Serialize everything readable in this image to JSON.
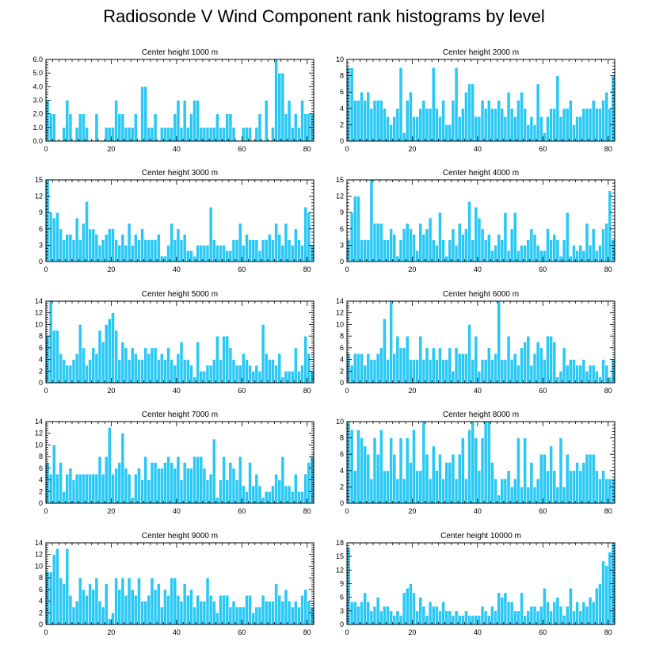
{
  "title": "Radiosonde V Wind Component rank histograms by level",
  "bar_color": "#29c8f5",
  "edge_color": "#ffffff",
  "chart_data": [
    {
      "type": "bar",
      "title": "Center height 1000 m",
      "xlim": [
        0,
        82
      ],
      "ylim": [
        0,
        6
      ],
      "xticks": [
        0,
        20,
        40,
        60,
        80
      ],
      "yticks": [
        0,
        1,
        2,
        3,
        4,
        5,
        6
      ],
      "ytick_labels": [
        "0.0",
        "1.0",
        "2.0",
        "3.0",
        "4.0",
        "5.0",
        "6.0"
      ],
      "values": [
        3,
        2,
        2,
        0,
        0,
        1,
        3,
        2,
        0,
        1,
        2,
        2,
        1,
        0,
        0,
        2,
        0,
        0,
        1,
        1,
        1,
        3,
        2,
        2,
        1,
        1,
        1,
        2,
        0,
        4,
        4,
        1,
        1,
        2,
        0,
        1,
        1,
        1,
        1,
        2,
        3,
        1,
        3,
        1,
        2,
        3,
        3,
        1,
        1,
        1,
        1,
        1,
        2,
        1,
        1,
        2,
        2,
        1,
        0,
        0,
        1,
        1,
        1,
        0,
        1,
        2,
        0,
        3,
        0,
        1,
        6,
        5,
        5,
        2,
        3,
        1,
        2,
        1,
        3,
        2,
        2,
        2
      ]
    },
    {
      "type": "bar",
      "title": "Center height 2000 m",
      "xlim": [
        0,
        82
      ],
      "ylim": [
        0,
        10
      ],
      "xticks": [
        0,
        20,
        40,
        60,
        80
      ],
      "yticks": [
        0,
        2,
        4,
        6,
        8,
        10
      ],
      "ytick_labels": [
        "0",
        "2",
        "4",
        "6",
        "8",
        "10"
      ],
      "values": [
        9,
        9,
        5,
        5,
        6,
        5,
        6,
        4,
        5,
        5,
        5,
        4,
        3,
        2,
        3,
        4,
        9,
        1,
        5,
        6,
        3,
        3,
        4,
        5,
        4,
        4,
        9,
        4,
        3,
        5,
        2,
        2,
        5,
        9,
        3,
        4,
        6,
        7,
        7,
        3,
        3,
        5,
        4,
        5,
        4,
        4,
        5,
        4,
        3,
        6,
        4,
        3,
        5,
        6,
        4,
        2,
        3,
        2,
        7,
        3,
        1,
        3,
        4,
        4,
        8,
        3,
        4,
        4,
        5,
        2,
        3,
        3,
        4,
        4,
        4,
        5,
        4,
        4,
        5,
        6,
        4,
        8
      ]
    },
    {
      "type": "bar",
      "title": "Center height 3000 m",
      "xlim": [
        0,
        82
      ],
      "ylim": [
        0,
        15
      ],
      "xticks": [
        0,
        20,
        40,
        60,
        80
      ],
      "yticks": [
        0,
        3,
        6,
        9,
        12,
        15
      ],
      "ytick_labels": [
        "0",
        "3",
        "6",
        "9",
        "12",
        "15"
      ],
      "values": [
        15,
        9,
        8,
        9,
        6,
        4,
        5,
        5,
        4,
        8,
        4,
        7,
        11,
        6,
        6,
        5,
        3,
        4,
        5,
        6,
        6,
        4,
        3,
        5,
        3,
        7,
        3,
        5,
        4,
        6,
        4,
        4,
        4,
        4,
        5,
        1,
        1,
        3,
        7,
        4,
        6,
        4,
        5,
        2,
        2,
        1,
        3,
        3,
        3,
        3,
        10,
        4,
        3,
        3,
        3,
        2,
        2,
        4,
        4,
        7,
        3,
        5,
        4,
        4,
        4,
        2,
        4,
        4,
        5,
        4,
        7,
        5,
        3,
        7,
        4,
        3,
        6,
        4,
        3,
        10,
        9,
        3
      ]
    },
    {
      "type": "bar",
      "title": "Center height 4000 m",
      "xlim": [
        0,
        82
      ],
      "ylim": [
        0,
        15
      ],
      "xticks": [
        0,
        20,
        40,
        60,
        80
      ],
      "yticks": [
        0,
        3,
        6,
        9,
        12,
        15
      ],
      "ytick_labels": [
        "0",
        "3",
        "6",
        "9",
        "12",
        "15"
      ],
      "values": [
        4,
        9,
        12,
        12,
        4,
        4,
        4,
        15,
        7,
        7,
        7,
        4,
        4,
        6,
        5,
        1,
        4,
        6,
        7,
        6,
        5,
        2,
        7,
        5,
        6,
        8,
        4,
        3,
        9,
        4,
        1,
        4,
        6,
        3,
        7,
        5,
        6,
        11,
        4,
        10,
        8,
        6,
        4,
        5,
        2,
        3,
        5,
        4,
        9,
        2,
        6,
        9,
        2,
        3,
        3,
        4,
        6,
        5,
        3,
        2,
        2,
        6,
        4,
        5,
        4,
        1,
        4,
        9,
        1,
        3,
        2,
        3,
        2,
        7,
        3,
        6,
        2,
        3,
        6,
        7,
        13,
        4
      ]
    },
    {
      "type": "bar",
      "title": "Center height 5000 m",
      "xlim": [
        0,
        82
      ],
      "ylim": [
        0,
        14
      ],
      "xticks": [
        0,
        20,
        40,
        60,
        80
      ],
      "yticks": [
        0,
        2,
        4,
        6,
        8,
        10,
        12,
        14
      ],
      "ytick_labels": [
        "0",
        "2",
        "4",
        "6",
        "8",
        "10",
        "12",
        "14"
      ],
      "values": [
        8,
        14,
        9,
        9,
        5,
        4,
        3,
        3,
        4,
        5,
        10,
        6,
        3,
        4,
        6,
        5,
        9,
        7,
        10,
        11,
        12,
        9,
        4,
        7,
        6,
        4,
        6,
        5,
        4,
        4,
        6,
        5,
        6,
        6,
        4,
        5,
        4,
        6,
        4,
        3,
        5,
        7,
        4,
        4,
        3,
        1,
        7,
        2,
        2,
        3,
        3,
        4,
        8,
        4,
        8,
        8,
        6,
        4,
        3,
        3,
        5,
        4,
        3,
        2,
        3,
        2,
        10,
        5,
        4,
        4,
        3,
        5,
        1,
        2,
        2,
        2,
        6,
        2,
        3,
        8,
        5,
        2
      ]
    },
    {
      "type": "bar",
      "title": "Center height 6000 m",
      "xlim": [
        0,
        82
      ],
      "ylim": [
        0,
        14
      ],
      "xticks": [
        0,
        20,
        40,
        60,
        80
      ],
      "yticks": [
        0,
        2,
        4,
        6,
        8,
        10,
        12,
        14
      ],
      "ytick_labels": [
        "0",
        "2",
        "4",
        "6",
        "8",
        "10",
        "12",
        "14"
      ],
      "values": [
        5,
        3,
        5,
        5,
        5,
        3,
        5,
        4,
        4,
        5,
        6,
        11,
        4,
        14,
        5,
        8,
        6,
        6,
        8,
        4,
        4,
        4,
        8,
        4,
        6,
        4,
        6,
        4,
        6,
        4,
        4,
        6,
        2,
        6,
        5,
        5,
        5,
        10,
        4,
        8,
        2,
        4,
        4,
        6,
        4,
        5,
        14,
        4,
        4,
        8,
        4,
        5,
        3,
        6,
        7,
        8,
        3,
        5,
        7,
        6,
        4,
        8,
        8,
        7,
        1,
        2,
        6,
        3,
        4,
        4,
        3,
        3,
        4,
        2,
        3,
        3,
        2,
        1,
        4,
        3,
        1,
        4
      ]
    },
    {
      "type": "bar",
      "title": "Center height 7000 m",
      "xlim": [
        0,
        82
      ],
      "ylim": [
        0,
        14
      ],
      "xticks": [
        0,
        20,
        40,
        60,
        80
      ],
      "yticks": [
        0,
        2,
        4,
        6,
        8,
        10,
        12,
        14
      ],
      "ytick_labels": [
        "0",
        "2",
        "4",
        "6",
        "8",
        "10",
        "12",
        "14"
      ],
      "values": [
        7,
        5,
        10,
        5,
        7,
        2,
        5,
        6,
        4,
        5,
        5,
        5,
        5,
        5,
        5,
        5,
        8,
        5,
        8,
        13,
        5,
        6,
        7,
        12,
        6,
        5,
        1,
        5,
        6,
        4,
        8,
        4,
        7,
        7,
        6,
        6,
        7,
        8,
        7,
        6,
        8,
        4,
        7,
        6,
        6,
        8,
        8,
        8,
        6,
        4,
        5,
        11,
        1,
        4,
        8,
        4,
        7,
        6,
        4,
        8,
        3,
        2,
        7,
        3,
        5,
        3,
        1,
        2,
        2,
        3,
        5,
        4,
        8,
        3,
        3,
        2,
        5,
        2,
        2,
        5,
        7,
        8
      ]
    },
    {
      "type": "bar",
      "title": "Center height 8000 m",
      "xlim": [
        0,
        82
      ],
      "ylim": [
        0,
        10
      ],
      "xticks": [
        0,
        20,
        40,
        60,
        80
      ],
      "yticks": [
        0,
        2,
        4,
        6,
        8,
        10
      ],
      "ytick_labels": [
        "0",
        "2",
        "4",
        "6",
        "8",
        "10"
      ],
      "values": [
        10,
        9,
        4,
        9,
        8,
        7,
        6,
        3,
        8,
        6,
        9,
        4,
        4,
        8,
        6,
        3,
        8,
        3,
        8,
        5,
        9,
        4,
        4,
        10,
        6,
        3,
        7,
        4,
        6,
        3,
        5,
        5,
        6,
        3,
        6,
        8,
        3,
        9,
        10,
        8,
        4,
        8,
        10,
        10,
        5,
        3,
        1,
        3,
        3,
        4,
        2,
        3,
        8,
        2,
        8,
        2,
        5,
        2,
        3,
        6,
        6,
        4,
        7,
        4,
        2,
        8,
        2,
        6,
        4,
        4,
        5,
        4,
        5,
        6,
        6,
        6,
        4,
        3,
        4,
        3,
        3,
        3
      ]
    },
    {
      "type": "bar",
      "title": "Center height 9000 m",
      "xlim": [
        0,
        82
      ],
      "ylim": [
        0,
        14
      ],
      "xticks": [
        0,
        20,
        40,
        60,
        80
      ],
      "yticks": [
        0,
        2,
        4,
        6,
        8,
        10,
        12,
        14
      ],
      "ytick_labels": [
        "0",
        "2",
        "4",
        "6",
        "8",
        "10",
        "12",
        "14"
      ],
      "values": [
        9,
        9,
        12,
        13,
        8,
        7,
        13,
        5,
        3,
        4,
        8,
        6,
        5,
        7,
        6,
        8,
        4,
        3,
        7,
        1,
        2,
        8,
        6,
        8,
        5,
        8,
        6,
        5,
        8,
        4,
        4,
        5,
        8,
        6,
        7,
        3,
        6,
        5,
        8,
        8,
        5,
        4,
        7,
        5,
        6,
        3,
        5,
        4,
        4,
        8,
        5,
        4,
        2,
        5,
        5,
        5,
        3,
        4,
        3,
        3,
        3,
        5,
        5,
        2,
        3,
        3,
        5,
        4,
        4,
        4,
        7,
        5,
        4,
        6,
        4,
        3,
        4,
        3,
        5,
        6,
        4,
        3
      ]
    },
    {
      "type": "bar",
      "title": "Center height 10000 m",
      "xlim": [
        0,
        82
      ],
      "ylim": [
        0,
        18
      ],
      "xticks": [
        0,
        20,
        40,
        60,
        80
      ],
      "yticks": [
        0,
        3,
        6,
        9,
        12,
        15,
        18
      ],
      "ytick_labels": [
        "0",
        "3",
        "6",
        "9",
        "12",
        "15",
        "18"
      ],
      "values": [
        17,
        5,
        5,
        4,
        5,
        7,
        5,
        3,
        4,
        6,
        3,
        4,
        4,
        3,
        2,
        3,
        2,
        7,
        8,
        9,
        7,
        3,
        6,
        4,
        2,
        5,
        4,
        4,
        3,
        5,
        3,
        3,
        2,
        3,
        2,
        2,
        3,
        2,
        2,
        2,
        2,
        4,
        3,
        2,
        4,
        3,
        7,
        6,
        7,
        5,
        5,
        3,
        3,
        7,
        2,
        3,
        4,
        4,
        3,
        4,
        8,
        5,
        3,
        5,
        6,
        4,
        2,
        4,
        8,
        3,
        5,
        3,
        5,
        4,
        6,
        5,
        8,
        9,
        14,
        13,
        16,
        18
      ]
    }
  ]
}
